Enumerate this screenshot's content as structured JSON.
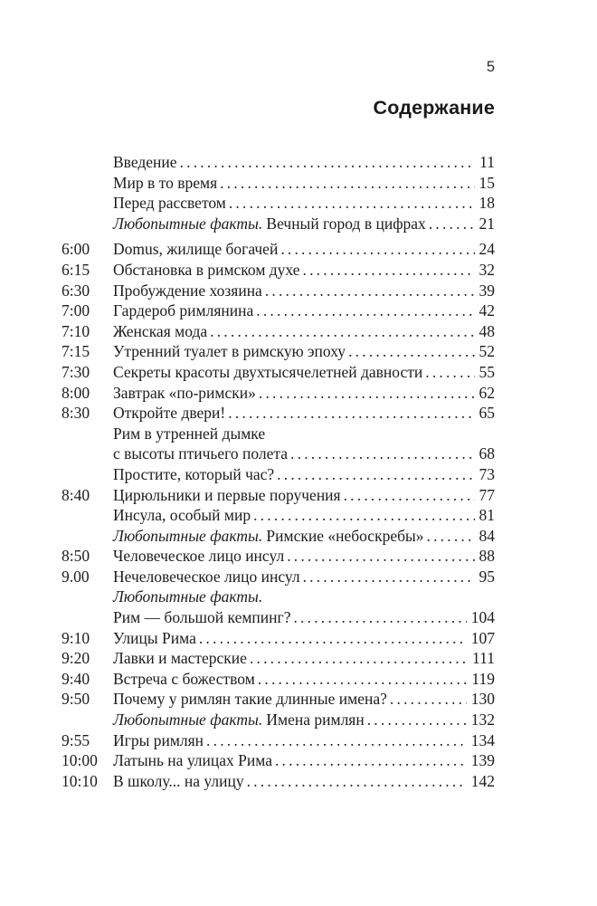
{
  "page": {
    "folio": "5",
    "title": "Содержание"
  },
  "toc": {
    "entries": [
      {
        "time": "",
        "italic": "",
        "title": "Введение",
        "page": "11"
      },
      {
        "time": "",
        "italic": "",
        "title": "Мир в то время",
        "page": "15"
      },
      {
        "time": "",
        "italic": "",
        "title": "Перед рассветом",
        "page": "18"
      },
      {
        "time": "",
        "italic": "Любопытные факты.",
        "title": "Вечный город в цифрах",
        "page": "21"
      },
      {
        "time": "6:00",
        "italic": "",
        "title": "Domus, жилище богачей",
        "page": "24",
        "gap_before": true
      },
      {
        "time": "6:15",
        "italic": "",
        "title": "Обстановка в римском духе",
        "page": "32"
      },
      {
        "time": "6:30",
        "italic": "",
        "title": "Пробуждение хозяина",
        "page": "39"
      },
      {
        "time": "7:00",
        "italic": "",
        "title": "Гардероб римлянина",
        "page": "42"
      },
      {
        "time": "7:10",
        "italic": "",
        "title": "Женская мода",
        "page": "48"
      },
      {
        "time": "7:15",
        "italic": "",
        "title": "Утренний туалет в римскую эпоху",
        "page": "52"
      },
      {
        "time": "7:30",
        "italic": "",
        "title": "Секреты красоты двухтысячелетней давности",
        "page": "55"
      },
      {
        "time": "8:00",
        "italic": "",
        "title": "Завтрак «по-римски»",
        "page": "62"
      },
      {
        "time": "8:30",
        "italic": "",
        "title": "Откройте двери!",
        "page": "65"
      },
      {
        "time": "",
        "italic": "",
        "title": "Рим в утренней дымке",
        "page": ""
      },
      {
        "time": "",
        "italic": "",
        "title": "с высоты птичьего полета",
        "page": "68"
      },
      {
        "time": "",
        "italic": "",
        "title": "Простите, который час?",
        "page": "73"
      },
      {
        "time": "8:40",
        "italic": "",
        "title": "Цирюльники и первые поручения",
        "page": "77"
      },
      {
        "time": "",
        "italic": "",
        "title": "Инсула, особый мир",
        "page": "81"
      },
      {
        "time": "",
        "italic": "Любопытные факты.",
        "title": "Римские «небоскребы»",
        "page": "84"
      },
      {
        "time": "8:50",
        "italic": "",
        "title": "Человеческое лицо инсул",
        "page": "88"
      },
      {
        "time": "9.00",
        "italic": "",
        "title": "Нечеловеческое лицо инсул",
        "page": "95"
      },
      {
        "time": "",
        "italic": "Любопытные факты.",
        "title": "",
        "page": ""
      },
      {
        "time": "",
        "italic": "",
        "title": "Рим — большой кемпинг?",
        "page": "104"
      },
      {
        "time": "9:10",
        "italic": "",
        "title": "Улицы Рима",
        "page": "107"
      },
      {
        "time": "9:20",
        "italic": "",
        "title": "Лавки и мастерские",
        "page": "111"
      },
      {
        "time": "9:40",
        "italic": "",
        "title": "Встреча с божеством",
        "page": "119"
      },
      {
        "time": "9:50",
        "italic": "",
        "title": "Почему у римлян такие длинные имена?",
        "page": "130"
      },
      {
        "time": "",
        "italic": "Любопытные факты.",
        "title": "Имена римлян",
        "page": "132"
      },
      {
        "time": "9:55",
        "italic": "",
        "title": "Игры римлян",
        "page": "134"
      },
      {
        "time": "10:00",
        "italic": "",
        "title": "Латынь на улицах Рима",
        "page": "139"
      },
      {
        "time": "10:10",
        "italic": "",
        "title": "В школу... на улицу",
        "page": "142"
      }
    ]
  }
}
